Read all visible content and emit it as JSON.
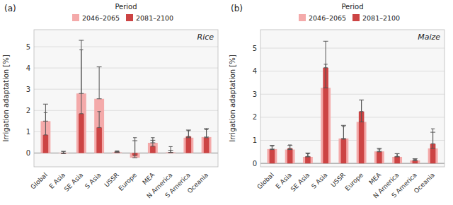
{
  "chart_data": [
    {
      "type": "bar",
      "title": "Rice",
      "annotations": [
        "(a)"
      ],
      "y_label": "Irrigation adaptation [%]",
      "categories": [
        "Global",
        "E Asia",
        "SE Asia",
        "S Asia",
        "USSR",
        "Europe",
        "MEA",
        "N America",
        "S America",
        "Oceania"
      ],
      "series": [
        {
          "name": "2046–2065",
          "color": "#f4aaaa",
          "values": [
            1.5,
            -0.02,
            2.8,
            2.55,
            0.03,
            -0.22,
            0.48,
            0.03,
            0.72,
            0.75
          ],
          "upper": [
            2.3,
            0.08,
            5.3,
            4.05,
            0.08,
            0.58,
            0.6,
            0.13,
            1.08,
            1.15
          ]
        },
        {
          "name": "2081–2100",
          "color": "#cc4444",
          "values": [
            0.85,
            -0.03,
            1.85,
            1.2,
            0.06,
            -0.12,
            0.32,
            0.02,
            0.78,
            0.72
          ],
          "upper": [
            1.9,
            0.06,
            4.85,
            1.95,
            0.1,
            0.72,
            0.72,
            0.3,
            1.05,
            1.1
          ]
        }
      ],
      "ylim": [
        -0.65,
        5.8
      ],
      "yticks": [
        0,
        1,
        2,
        3,
        4,
        5
      ],
      "grid": true,
      "legend": "top",
      "legend_title": "Period"
    },
    {
      "type": "bar",
      "title": "Maize",
      "annotations": [
        "(b)"
      ],
      "y_label": "Irrigation adaptation [%]",
      "categories": [
        "Global",
        "E Asia",
        "SE Asia",
        "S Asia",
        "USSR",
        "Europe",
        "MEA",
        "N America",
        "S America",
        "Oceania"
      ],
      "series": [
        {
          "name": "2046–2065",
          "color": "#f4aaaa",
          "values": [
            0.62,
            0.6,
            0.28,
            3.28,
            1.08,
            1.8,
            0.52,
            0.28,
            0.13,
            0.65
          ],
          "upper": [
            0.78,
            0.78,
            0.45,
            5.3,
            1.65,
            2.75,
            0.65,
            0.42,
            0.2,
            1.35
          ]
        },
        {
          "name": "2081–2100",
          "color": "#cc4444",
          "values": [
            0.6,
            0.65,
            0.3,
            4.15,
            1.05,
            2.25,
            0.5,
            0.3,
            0.12,
            0.85
          ],
          "upper": [
            0.75,
            0.8,
            0.42,
            4.3,
            1.6,
            2.75,
            0.62,
            0.42,
            0.18,
            1.5
          ]
        }
      ],
      "ylim": [
        -0.15,
        5.8
      ],
      "yticks": [
        0,
        1,
        2,
        3,
        4,
        5
      ],
      "grid": true,
      "legend": "top",
      "legend_title": "Period"
    }
  ]
}
